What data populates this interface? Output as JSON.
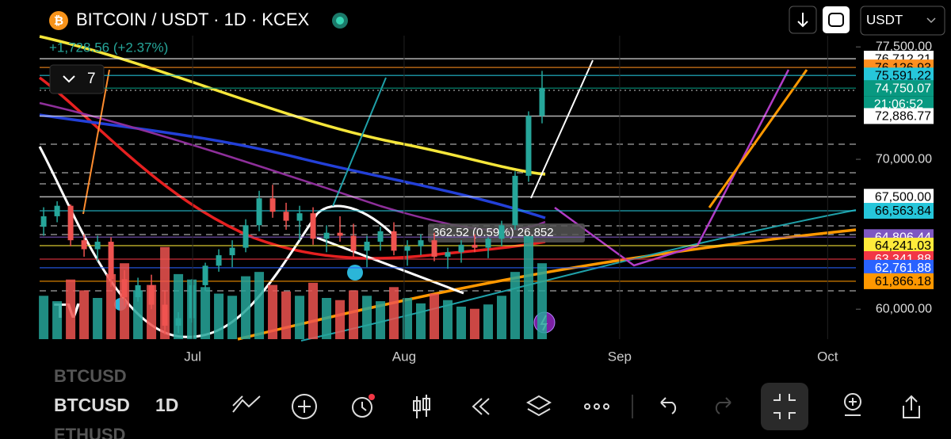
{
  "header": {
    "title": "BITCOIN / USDT · 1D · KCEX",
    "change": "+1,728.56 (+2.37%)",
    "indicators_count": "7",
    "currency": "USDT"
  },
  "measure_label": "362.52 (0.59%) 26,852",
  "chart_data": {
    "type": "candlestick",
    "xlim": [
      -0.3,
      60.3
    ],
    "xticks": [
      {
        "value": 11.06,
        "label": "Jul"
      },
      {
        "value": 26.76,
        "label": "Aug"
      },
      {
        "value": 42.76,
        "label": "Sep"
      },
      {
        "value": 58.2,
        "label": "Oct"
      }
    ],
    "ylim": [
      58000,
      78250
    ],
    "yticks": [
      {
        "value": 60000,
        "label": "60,000.00"
      },
      {
        "value": 70000,
        "label": "70,000.00"
      },
      {
        "value": 77500,
        "label": "77,500.00"
      }
    ],
    "up_color": "#26a69a",
    "down_color": "#ef5350",
    "open": [
      65500,
      66200,
      66900,
      64600,
      64000,
      64500,
      62000,
      60800,
      61600,
      60300,
      58900,
      59400,
      61600,
      62900,
      63600,
      64100,
      65600,
      67400,
      66500,
      65900,
      66400,
      64700,
      65100,
      64900,
      63900,
      64500,
      65200,
      63900,
      64200,
      64600,
      63500,
      63800,
      64300,
      64100,
      64700,
      65600,
      68900,
      72900
    ],
    "high": [
      66800,
      67200,
      67000,
      65000,
      64900,
      64800,
      62600,
      62100,
      62300,
      61200,
      59800,
      62000,
      63100,
      64000,
      64600,
      66000,
      67900,
      68300,
      67100,
      66900,
      66800,
      65600,
      66200,
      65700,
      64900,
      65500,
      65800,
      64600,
      65000,
      65100,
      64100,
      64600,
      65000,
      64800,
      65900,
      69200,
      73200,
      75900
    ],
    "low": [
      64900,
      65800,
      64200,
      63500,
      63200,
      61500,
      60200,
      60500,
      60000,
      58300,
      58400,
      59100,
      61200,
      62500,
      62800,
      63800,
      65200,
      66100,
      65300,
      64600,
      64300,
      63800,
      64500,
      63500,
      62800,
      63900,
      63600,
      62900,
      63600,
      63200,
      62700,
      63100,
      63800,
      63400,
      64200,
      65300,
      68500,
      72400
    ],
    "close": [
      66200,
      66900,
      64600,
      64000,
      64500,
      62000,
      60800,
      61600,
      60300,
      58900,
      59400,
      61600,
      62900,
      63600,
      64100,
      65600,
      67400,
      66500,
      65900,
      66400,
      64700,
      65100,
      64900,
      63900,
      64500,
      65200,
      63900,
      64200,
      64600,
      63500,
      63800,
      64300,
      64100,
      64700,
      65600,
      68900,
      72900,
      74750.07
    ],
    "volume": [
      40,
      35,
      55,
      45,
      38,
      60,
      70,
      45,
      50,
      85,
      60,
      55,
      48,
      42,
      40,
      58,
      62,
      50,
      44,
      40,
      52,
      38,
      36,
      45,
      40,
      35,
      48,
      38,
      33,
      42,
      36,
      30,
      28,
      32,
      40,
      62,
      95,
      70
    ],
    "price_lines": [
      {
        "value": 76712.21,
        "label": "76,712.21",
        "color": "#ffffff",
        "text_color": "#000000"
      },
      {
        "value": 76126.93,
        "label": "76,126.93",
        "color": "#ff8f1f",
        "text_color": "#000000"
      },
      {
        "value": 75591.22,
        "label": "75,591.22",
        "color": "#26c6da",
        "text_color": "#000000"
      },
      {
        "value": 74750.07,
        "label": "74,750.07",
        "color": "#089981",
        "text_color": "#ffffff"
      },
      {
        "value": 72886.77,
        "label": "72,886.77",
        "color": "#ffffff",
        "text_color": "#000000"
      },
      {
        "value": 67500,
        "label": "67,500.00",
        "color": "#ffffff",
        "text_color": "#000000"
      },
      {
        "value": 66563.84,
        "label": "66,563.84",
        "color": "#26c6da",
        "text_color": "#000000"
      },
      {
        "value": 64806.44,
        "label": "64,806.44",
        "color": "#7e57c2",
        "text_color": "#ffffff"
      },
      {
        "value": 64241.03,
        "label": "64,241.03",
        "color": "#ffeb3b",
        "text_color": "#000000"
      },
      {
        "value": 63341.88,
        "label": "63,341.88",
        "color": "#f23645",
        "text_color": "#ffffff"
      },
      {
        "value": 62761.88,
        "label": "62,761.88",
        "color": "#2962ff",
        "text_color": "#ffffff"
      },
      {
        "value": 61866.18,
        "label": "61,866.18",
        "color": "#ff9800",
        "text_color": "#000000"
      }
    ],
    "countdown": "21:06:52"
  },
  "bottom_bar": {
    "symbol_prev": "BTCUSD",
    "symbol": "BTCUSD",
    "symbol_next": "ETHUSD",
    "interval": "1D"
  }
}
